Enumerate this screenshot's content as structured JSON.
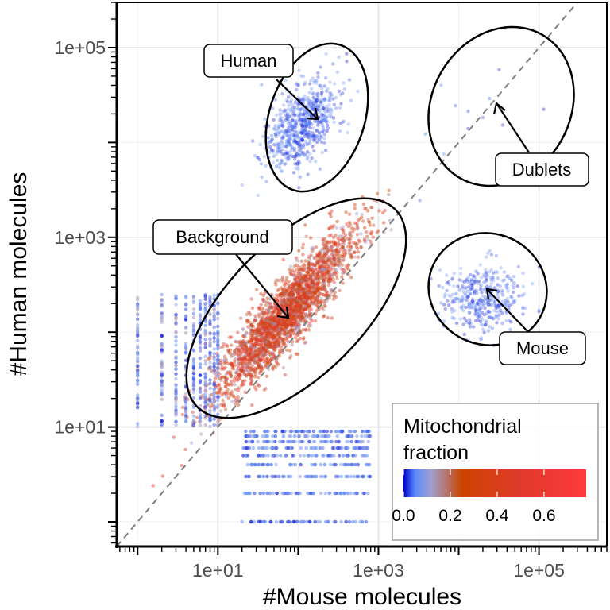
{
  "chart_data": {
    "type": "scatter",
    "x_scale": "log10",
    "y_scale": "log10",
    "xlabel": "#Mouse molecules",
    "ylabel": "#Human molecules",
    "xlim": [
      0.55,
      700000
    ],
    "ylim": [
      0.55,
      300000
    ],
    "x_ticks": [
      {
        "value": 10,
        "label": "1e+01"
      },
      {
        "value": 1000,
        "label": "1e+03"
      },
      {
        "value": 100000,
        "label": "1e+05"
      }
    ],
    "y_ticks": [
      {
        "value": 10,
        "label": "1e+01"
      },
      {
        "value": 1000,
        "label": "1e+03"
      },
      {
        "value": 100000,
        "label": "1e+05"
      }
    ],
    "reference_line": {
      "type": "identity",
      "style": "dashed",
      "color": "#808080"
    },
    "grid": true,
    "colorbar": {
      "title_line1": "Mitochondrial",
      "title_line2": "fraction",
      "range": [
        0,
        0.78
      ],
      "ticks": [
        {
          "value": 0.0,
          "label": "0.0"
        },
        {
          "value": 0.2,
          "label": "0.2"
        },
        {
          "value": 0.4,
          "label": "0.4"
        },
        {
          "value": 0.6,
          "label": "0.6"
        }
      ],
      "stops": [
        {
          "value": 0.0,
          "color": "#0000c8"
        },
        {
          "value": 0.05,
          "color": "#5a8cff"
        },
        {
          "value": 0.12,
          "color": "#a0a0d0"
        },
        {
          "value": 0.25,
          "color": "#cc4400"
        },
        {
          "value": 0.5,
          "color": "#e03a2c"
        },
        {
          "value": 0.78,
          "color": "#ff3a3a"
        }
      ]
    },
    "clusters": [
      {
        "name": "Human",
        "cx_log": 2.05,
        "cy_log": 4.2,
        "sx": 0.2,
        "sy": 0.23,
        "rho": 0.2,
        "n": 650,
        "mito": [
          0.0,
          0.08
        ]
      },
      {
        "name": "Mouse",
        "cx_log": 4.3,
        "cy_log": 2.35,
        "sx": 0.24,
        "sy": 0.18,
        "rho": 0.0,
        "n": 380,
        "mito": [
          0.0,
          0.08
        ]
      },
      {
        "name": "Dublets",
        "cx_log": 4.2,
        "cy_log": 4.2,
        "sx": 0.4,
        "sy": 0.4,
        "rho": 0.0,
        "n": 12,
        "mito": [
          0.0,
          0.05
        ]
      },
      {
        "name": "Background",
        "cx_log": 1.85,
        "cy_log": 2.2,
        "sx": 0.42,
        "sy": 0.42,
        "rho": 0.93,
        "n": 2600,
        "mito": [
          0.1,
          0.6
        ]
      }
    ],
    "integer_stripes": {
      "y_at_low_x": [
        1,
        2,
        3,
        4,
        5,
        6,
        7,
        8,
        9,
        10
      ],
      "x_at_low_y": [
        1,
        2,
        3,
        4,
        5,
        6,
        7,
        8,
        9
      ]
    },
    "annotations": [
      {
        "label": "Human",
        "target": "Human cluster"
      },
      {
        "label": "Dublets",
        "target": "Dublets cluster"
      },
      {
        "label": "Background",
        "target": "Background cluster"
      },
      {
        "label": "Mouse",
        "target": "Mouse cluster"
      }
    ]
  }
}
